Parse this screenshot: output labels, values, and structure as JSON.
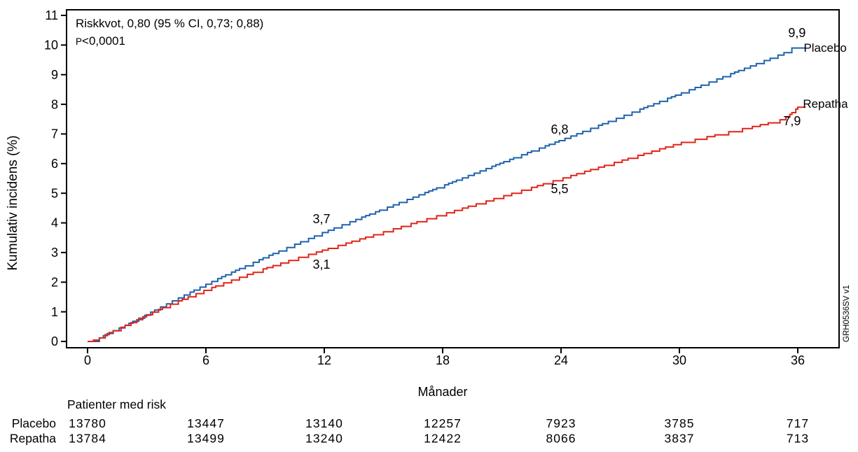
{
  "side_code": "GRH0536SV v1",
  "annotation": {
    "line1": "Riskkvot, 0,80 (95 % CI, 0,73; 0,88)",
    "p_label": "P",
    "p_value": "<0,0001"
  },
  "colors": {
    "placebo": "#1f63ad",
    "repatha": "#e02519",
    "axis": "#000000",
    "side_code_text": "#222222"
  },
  "chart_data": {
    "type": "line",
    "subtype": "kaplan-meier-cumulative-incidence",
    "title": "",
    "xlabel": "Månader",
    "ylabel": "Kumulativ incidens (%)",
    "xlim": [
      0,
      36.5
    ],
    "ylim": [
      0,
      11
    ],
    "xticks": [
      0,
      6,
      12,
      18,
      24,
      30,
      36
    ],
    "yticks": [
      0,
      1,
      2,
      3,
      4,
      5,
      6,
      7,
      8,
      9,
      10,
      11
    ],
    "grid": false,
    "legend_position": "end-of-line-labels",
    "series": [
      {
        "name": "Placebo",
        "color_key": "placebo",
        "x": [
          0,
          0.5,
          1,
          2,
          3,
          4,
          5,
          6,
          7,
          8,
          9,
          10,
          11,
          12,
          13,
          14,
          15,
          16,
          17,
          18,
          19,
          20,
          21,
          22,
          23,
          24,
          25,
          26,
          27,
          28,
          29,
          30,
          31,
          32,
          33,
          34,
          35,
          35.5,
          36,
          36.4
        ],
        "y": [
          0,
          0.08,
          0.27,
          0.58,
          0.92,
          1.27,
          1.6,
          1.93,
          2.25,
          2.55,
          2.85,
          3.14,
          3.42,
          3.7,
          3.96,
          4.22,
          4.48,
          4.74,
          5.0,
          5.26,
          5.52,
          5.78,
          6.04,
          6.3,
          6.55,
          6.8,
          7.06,
          7.32,
          7.58,
          7.84,
          8.1,
          8.36,
          8.62,
          8.88,
          9.14,
          9.4,
          9.66,
          9.8,
          9.9,
          9.9
        ],
        "milestones": {
          "12": "3,7",
          "24": "6,8",
          "36": "9,9"
        },
        "labels": [
          {
            "text": "3,7",
            "m": 11.86,
            "v": 3.99,
            "anchor": "middle",
            "size": 18
          },
          {
            "text": "6,8",
            "m": 23.93,
            "v": 7.01,
            "anchor": "middle",
            "size": 18
          },
          {
            "text": "9,9",
            "m": 35.96,
            "v": 10.27,
            "anchor": "middle",
            "size": 18
          },
          {
            "text": "Placebo",
            "m": 36.3,
            "v": 9.77,
            "anchor": "start",
            "size": 17
          }
        ]
      },
      {
        "name": "Repatha",
        "color_key": "repatha",
        "x": [
          0,
          0.5,
          1,
          2,
          3,
          4,
          5,
          6,
          7,
          8,
          9,
          10,
          11,
          12,
          13,
          14,
          15,
          16,
          17,
          18,
          19,
          20,
          21,
          22,
          23,
          24,
          25,
          26,
          27,
          28,
          29,
          30,
          31,
          32,
          33,
          34,
          35,
          35.5,
          36,
          36.4
        ],
        "y": [
          0,
          0.08,
          0.27,
          0.57,
          0.9,
          1.2,
          1.48,
          1.75,
          2.0,
          2.24,
          2.47,
          2.69,
          2.9,
          3.1,
          3.3,
          3.5,
          3.7,
          3.9,
          4.1,
          4.3,
          4.5,
          4.7,
          4.9,
          5.1,
          5.3,
          5.5,
          5.7,
          5.9,
          6.1,
          6.3,
          6.5,
          6.7,
          6.85,
          7.0,
          7.15,
          7.3,
          7.45,
          7.6,
          7.9,
          7.9
        ],
        "milestones": {
          "12": "3,1",
          "24": "5,5",
          "36": "7,9"
        },
        "labels": [
          {
            "text": "3,1",
            "m": 11.86,
            "v": 2.46,
            "anchor": "middle",
            "size": 18
          },
          {
            "text": "5,5",
            "m": 23.93,
            "v": 5.0,
            "anchor": "middle",
            "size": 18
          },
          {
            "text": "7,9",
            "m": 35.71,
            "v": 7.29,
            "anchor": "middle",
            "size": 18
          },
          {
            "text": "Repatha",
            "m": 36.26,
            "v": 7.88,
            "anchor": "start",
            "size": 17
          }
        ]
      }
    ]
  },
  "risk_table": {
    "title": "Patienter med risk",
    "timepoints": [
      0,
      6,
      12,
      18,
      24,
      30,
      36
    ],
    "rows": [
      {
        "label": "Placebo",
        "values": [
          "13780",
          "13447",
          "13140",
          "12257",
          "7923",
          "3785",
          "717"
        ]
      },
      {
        "label": "Repatha",
        "values": [
          "13784",
          "13499",
          "13240",
          "12422",
          "8066",
          "3837",
          "713"
        ]
      }
    ]
  }
}
